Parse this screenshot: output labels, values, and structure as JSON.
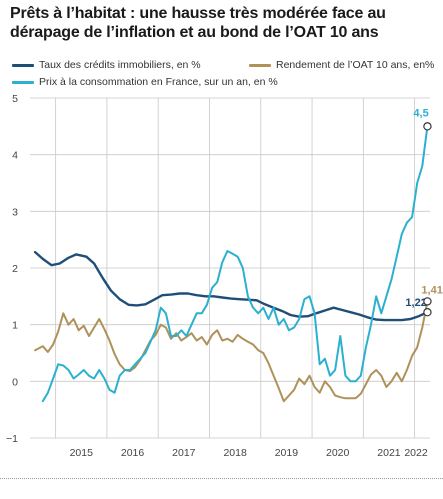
{
  "chart_data": {
    "type": "line",
    "title": "Prêts à l’habitat : une hausse très modérée face au dérapage de l’inflation et au bond de l’OAT 10 ans",
    "xlabel": "",
    "ylabel": "",
    "ylim": [
      -1,
      5
    ],
    "yticks": [
      "−1",
      "0",
      "1",
      "2",
      "3",
      "4",
      "5"
    ],
    "xticks": [
      "2015",
      "2016",
      "2017",
      "2018",
      "2019",
      "2020",
      "2021",
      "2022"
    ],
    "grid": true,
    "legend_position": "top",
    "series": [
      {
        "name": "Taux des crédits immobiliers, en %",
        "color": "#1f4e79",
        "end_label": "1,22",
        "points": [
          [
            2014.6,
            2.28
          ],
          [
            2014.75,
            2.16
          ],
          [
            2014.92,
            2.05
          ],
          [
            2015.08,
            2.08
          ],
          [
            2015.25,
            2.18
          ],
          [
            2015.4,
            2.24
          ],
          [
            2015.6,
            2.2
          ],
          [
            2015.75,
            2.08
          ],
          [
            2015.92,
            1.82
          ],
          [
            2016.08,
            1.6
          ],
          [
            2016.25,
            1.45
          ],
          [
            2016.42,
            1.35
          ],
          [
            2016.58,
            1.34
          ],
          [
            2016.75,
            1.36
          ],
          [
            2016.92,
            1.44
          ],
          [
            2017.08,
            1.52
          ],
          [
            2017.25,
            1.53
          ],
          [
            2017.42,
            1.55
          ],
          [
            2017.58,
            1.55
          ],
          [
            2017.75,
            1.52
          ],
          [
            2017.92,
            1.5
          ],
          [
            2018.08,
            1.5
          ],
          [
            2018.25,
            1.48
          ],
          [
            2018.42,
            1.46
          ],
          [
            2018.58,
            1.45
          ],
          [
            2018.75,
            1.44
          ],
          [
            2018.92,
            1.43
          ],
          [
            2019.08,
            1.36
          ],
          [
            2019.25,
            1.3
          ],
          [
            2019.42,
            1.24
          ],
          [
            2019.58,
            1.17
          ],
          [
            2019.75,
            1.14
          ],
          [
            2019.92,
            1.15
          ],
          [
            2020.08,
            1.2
          ],
          [
            2020.25,
            1.25
          ],
          [
            2020.42,
            1.3
          ],
          [
            2020.58,
            1.26
          ],
          [
            2020.75,
            1.22
          ],
          [
            2020.92,
            1.18
          ],
          [
            2021.08,
            1.13
          ],
          [
            2021.25,
            1.09
          ],
          [
            2021.42,
            1.08
          ],
          [
            2021.58,
            1.08
          ],
          [
            2021.75,
            1.08
          ],
          [
            2021.92,
            1.1
          ],
          [
            2022.08,
            1.15
          ],
          [
            2022.25,
            1.22
          ]
        ]
      },
      {
        "name": "Rendement de l’OAT 10 ans, en%",
        "color": "#b0915a",
        "end_label": "1,41",
        "points": [
          [
            2014.6,
            0.55
          ],
          [
            2014.75,
            0.62
          ],
          [
            2014.85,
            0.52
          ],
          [
            2014.95,
            0.65
          ],
          [
            2015.05,
            0.88
          ],
          [
            2015.15,
            1.2
          ],
          [
            2015.25,
            1.0
          ],
          [
            2015.35,
            1.1
          ],
          [
            2015.45,
            0.9
          ],
          [
            2015.55,
            0.98
          ],
          [
            2015.65,
            0.8
          ],
          [
            2015.75,
            0.95
          ],
          [
            2015.85,
            1.1
          ],
          [
            2015.95,
            0.92
          ],
          [
            2016.05,
            0.72
          ],
          [
            2016.15,
            0.48
          ],
          [
            2016.25,
            0.3
          ],
          [
            2016.35,
            0.2
          ],
          [
            2016.45,
            0.18
          ],
          [
            2016.55,
            0.25
          ],
          [
            2016.65,
            0.38
          ],
          [
            2016.75,
            0.55
          ],
          [
            2016.85,
            0.72
          ],
          [
            2016.95,
            0.82
          ],
          [
            2017.05,
            1.0
          ],
          [
            2017.15,
            0.95
          ],
          [
            2017.25,
            0.75
          ],
          [
            2017.35,
            0.85
          ],
          [
            2017.45,
            0.72
          ],
          [
            2017.55,
            0.78
          ],
          [
            2017.65,
            0.85
          ],
          [
            2017.75,
            0.72
          ],
          [
            2017.85,
            0.78
          ],
          [
            2017.95,
            0.65
          ],
          [
            2018.05,
            0.82
          ],
          [
            2018.15,
            0.9
          ],
          [
            2018.25,
            0.72
          ],
          [
            2018.35,
            0.75
          ],
          [
            2018.45,
            0.7
          ],
          [
            2018.55,
            0.82
          ],
          [
            2018.65,
            0.75
          ],
          [
            2018.75,
            0.7
          ],
          [
            2018.85,
            0.65
          ],
          [
            2018.95,
            0.55
          ],
          [
            2019.05,
            0.5
          ],
          [
            2019.15,
            0.32
          ],
          [
            2019.25,
            0.1
          ],
          [
            2019.35,
            -0.12
          ],
          [
            2019.45,
            -0.35
          ],
          [
            2019.55,
            -0.25
          ],
          [
            2019.65,
            -0.15
          ],
          [
            2019.75,
            0.05
          ],
          [
            2019.85,
            -0.05
          ],
          [
            2019.95,
            0.1
          ],
          [
            2020.05,
            -0.1
          ],
          [
            2020.15,
            -0.2
          ],
          [
            2020.25,
            0.0
          ],
          [
            2020.35,
            -0.1
          ],
          [
            2020.45,
            -0.25
          ],
          [
            2020.55,
            -0.28
          ],
          [
            2020.65,
            -0.3
          ],
          [
            2020.75,
            -0.3
          ],
          [
            2020.85,
            -0.3
          ],
          [
            2020.95,
            -0.22
          ],
          [
            2021.05,
            -0.05
          ],
          [
            2021.15,
            0.12
          ],
          [
            2021.25,
            0.2
          ],
          [
            2021.35,
            0.1
          ],
          [
            2021.45,
            -0.1
          ],
          [
            2021.55,
            0.0
          ],
          [
            2021.65,
            0.15
          ],
          [
            2021.75,
            0.0
          ],
          [
            2021.85,
            0.2
          ],
          [
            2021.95,
            0.45
          ],
          [
            2022.05,
            0.6
          ],
          [
            2022.15,
            0.95
          ],
          [
            2022.25,
            1.41
          ]
        ]
      },
      {
        "name": "Prix à la consommation en France, sur un an, en %",
        "color": "#2bb0d0",
        "end_label": "4,5",
        "points": [
          [
            2014.75,
            -0.35
          ],
          [
            2014.85,
            -0.2
          ],
          [
            2014.95,
            0.05
          ],
          [
            2015.05,
            0.3
          ],
          [
            2015.15,
            0.28
          ],
          [
            2015.25,
            0.2
          ],
          [
            2015.35,
            0.05
          ],
          [
            2015.45,
            0.12
          ],
          [
            2015.55,
            0.2
          ],
          [
            2015.65,
            0.1
          ],
          [
            2015.75,
            0.05
          ],
          [
            2015.85,
            0.2
          ],
          [
            2015.95,
            0.05
          ],
          [
            2016.05,
            -0.15
          ],
          [
            2016.15,
            -0.2
          ],
          [
            2016.25,
            0.1
          ],
          [
            2016.35,
            0.2
          ],
          [
            2016.45,
            0.2
          ],
          [
            2016.55,
            0.3
          ],
          [
            2016.65,
            0.4
          ],
          [
            2016.75,
            0.5
          ],
          [
            2016.85,
            0.7
          ],
          [
            2016.95,
            0.9
          ],
          [
            2017.05,
            1.3
          ],
          [
            2017.15,
            1.2
          ],
          [
            2017.25,
            0.8
          ],
          [
            2017.35,
            0.8
          ],
          [
            2017.45,
            0.9
          ],
          [
            2017.55,
            0.8
          ],
          [
            2017.65,
            1.0
          ],
          [
            2017.75,
            1.2
          ],
          [
            2017.85,
            1.2
          ],
          [
            2017.95,
            1.35
          ],
          [
            2018.05,
            1.65
          ],
          [
            2018.15,
            1.75
          ],
          [
            2018.25,
            2.1
          ],
          [
            2018.35,
            2.3
          ],
          [
            2018.45,
            2.25
          ],
          [
            2018.55,
            2.2
          ],
          [
            2018.65,
            2.0
          ],
          [
            2018.75,
            1.5
          ],
          [
            2018.85,
            1.3
          ],
          [
            2018.95,
            1.2
          ],
          [
            2019.05,
            1.3
          ],
          [
            2019.15,
            1.1
          ],
          [
            2019.25,
            1.3
          ],
          [
            2019.35,
            1.0
          ],
          [
            2019.45,
            1.1
          ],
          [
            2019.55,
            0.9
          ],
          [
            2019.65,
            0.95
          ],
          [
            2019.75,
            1.1
          ],
          [
            2019.85,
            1.45
          ],
          [
            2019.95,
            1.5
          ],
          [
            2020.05,
            1.2
          ],
          [
            2020.15,
            0.3
          ],
          [
            2020.25,
            0.4
          ],
          [
            2020.35,
            0.1
          ],
          [
            2020.45,
            0.2
          ],
          [
            2020.55,
            0.8
          ],
          [
            2020.65,
            0.1
          ],
          [
            2020.75,
            0.0
          ],
          [
            2020.85,
            0.0
          ],
          [
            2020.95,
            0.1
          ],
          [
            2021.05,
            0.6
          ],
          [
            2021.15,
            1.0
          ],
          [
            2021.25,
            1.5
          ],
          [
            2021.35,
            1.2
          ],
          [
            2021.45,
            1.5
          ],
          [
            2021.55,
            1.8
          ],
          [
            2021.65,
            2.2
          ],
          [
            2021.75,
            2.6
          ],
          [
            2021.85,
            2.8
          ],
          [
            2021.95,
            2.9
          ],
          [
            2022.05,
            3.5
          ],
          [
            2022.15,
            3.8
          ],
          [
            2022.25,
            4.5
          ]
        ]
      }
    ]
  }
}
